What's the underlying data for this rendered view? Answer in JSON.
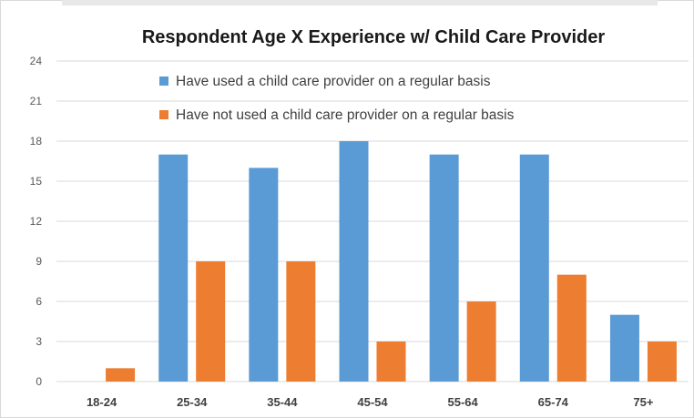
{
  "chart_data": {
    "type": "bar",
    "title": "Respondent Age X Experience w/ Child Care Provider",
    "xlabel": "",
    "ylabel": "",
    "categories": [
      "18-24",
      "25-34",
      "35-44",
      "45-54",
      "55-64",
      "65-74",
      "75+"
    ],
    "series": [
      {
        "name": "Have used a child care provider on a regular basis",
        "color": "#5b9bd5",
        "values": [
          0,
          17,
          16,
          18,
          17,
          17,
          5
        ]
      },
      {
        "name": "Have not used a child care provider on a regular basis",
        "color": "#ed7d31",
        "values": [
          1,
          9,
          9,
          3,
          6,
          8,
          3
        ]
      }
    ],
    "ylim": [
      0,
      24
    ],
    "yticks": [
      0,
      3,
      6,
      9,
      12,
      15,
      18,
      21,
      24
    ],
    "grid": true,
    "grid_color": "#d9d9d9",
    "legend_position": "top"
  }
}
